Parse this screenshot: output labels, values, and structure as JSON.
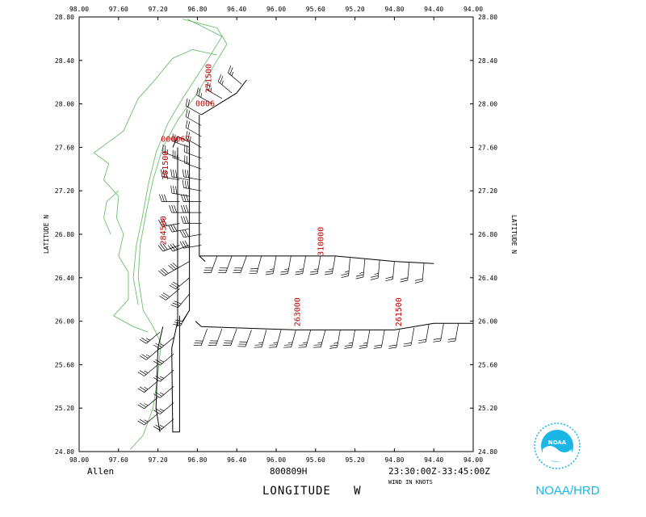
{
  "chart_data": {
    "type": "map",
    "title": "",
    "storm_name": "Allen",
    "date_code": "800809H",
    "time_range": "23:30:00Z-33:45:00Z",
    "wind_units": "WIND IN KNOTS",
    "xlabel": "LONGITUDE   W",
    "ylabel": "LATITUDE   N",
    "xlim": [
      98.0,
      94.0
    ],
    "ylim": [
      24.8,
      28.8
    ],
    "x_ticks": [
      "98.00",
      "97.60",
      "97.20",
      "96.80",
      "96.40",
      "96.00",
      "95.60",
      "95.20",
      "94.80",
      "94.40",
      "94.00"
    ],
    "y_ticks": [
      "28.80",
      "28.40",
      "28.00",
      "27.60",
      "27.20",
      "26.80",
      "26.40",
      "26.00",
      "25.60",
      "25.20",
      "24.80"
    ],
    "time_labels": [
      {
        "text": "271500",
        "lon": 96.66,
        "lat": 28.1
      },
      {
        "text": "0006",
        "lon": 96.82,
        "lat": 27.98
      },
      {
        "text": "000067",
        "lon": 97.17,
        "lat": 27.65
      },
      {
        "text": "301500",
        "lon": 97.1,
        "lat": 27.3
      },
      {
        "text": "284500",
        "lon": 97.12,
        "lat": 26.7
      },
      {
        "text": "310000",
        "lon": 95.52,
        "lat": 26.6
      },
      {
        "text": "263000",
        "lon": 95.76,
        "lat": 25.95
      },
      {
        "text": "261500",
        "lon": 94.73,
        "lat": 25.95
      }
    ],
    "flight_tracks": [
      [
        [
          96.78,
          27.9
        ],
        [
          96.78,
          26.6
        ],
        [
          96.72,
          26.55
        ]
      ],
      [
        [
          96.76,
          27.9
        ],
        [
          96.4,
          28.1
        ],
        [
          96.3,
          28.22
        ]
      ],
      [
        [
          96.78,
          26.6
        ],
        [
          96.2,
          26.6
        ],
        [
          95.4,
          26.6
        ],
        [
          94.8,
          26.55
        ],
        [
          94.4,
          26.53
        ]
      ],
      [
        [
          96.82,
          26.0
        ],
        [
          96.76,
          25.95
        ],
        [
          95.8,
          25.92
        ],
        [
          95.4,
          25.92
        ],
        [
          94.8,
          25.92
        ],
        [
          94.4,
          25.98
        ],
        [
          94.0,
          25.98
        ]
      ],
      [
        [
          97.05,
          27.6
        ],
        [
          97.0,
          27.7
        ],
        [
          96.88,
          27.65
        ],
        [
          96.88,
          26.1
        ],
        [
          96.95,
          26.0
        ]
      ],
      [
        [
          97.0,
          27.6
        ],
        [
          97.0,
          25.95
        ]
      ],
      [
        [
          97.0,
          26.0
        ],
        [
          97.06,
          25.75
        ],
        [
          97.05,
          24.98
        ],
        [
          96.98,
          24.98
        ],
        [
          96.98,
          26.05
        ]
      ],
      [
        [
          97.15,
          25.95
        ],
        [
          97.2,
          25.75
        ],
        [
          97.22,
          25.2
        ],
        [
          97.18,
          24.98
        ]
      ]
    ],
    "coastline": [
      [
        [
          96.95,
          28.78
        ],
        [
          96.6,
          28.7
        ],
        [
          96.5,
          28.55
        ],
        [
          96.6,
          28.4
        ],
        [
          96.8,
          28.1
        ],
        [
          97.0,
          27.85
        ],
        [
          97.15,
          27.6
        ],
        [
          97.25,
          27.3
        ],
        [
          97.32,
          27.0
        ],
        [
          97.38,
          26.7
        ],
        [
          97.4,
          26.4
        ],
        [
          97.35,
          26.1
        ],
        [
          97.25,
          25.95
        ],
        [
          97.17,
          25.8
        ],
        [
          97.2,
          25.5
        ],
        [
          97.25,
          25.2
        ],
        [
          97.35,
          24.95
        ],
        [
          97.48,
          24.82
        ]
      ],
      [
        [
          96.9,
          28.78
        ],
        [
          96.55,
          28.62
        ],
        [
          96.7,
          28.4
        ],
        [
          96.95,
          28.05
        ],
        [
          97.1,
          27.82
        ],
        [
          97.22,
          27.55
        ],
        [
          97.3,
          27.25
        ],
        [
          97.36,
          26.95
        ],
        [
          97.42,
          26.7
        ],
        [
          97.45,
          26.4
        ],
        [
          97.4,
          26.15
        ]
      ],
      [
        [
          96.6,
          28.45
        ],
        [
          96.85,
          28.5
        ],
        [
          97.05,
          28.42
        ],
        [
          97.25,
          28.2
        ],
        [
          97.4,
          28.05
        ],
        [
          97.5,
          27.85
        ],
        [
          97.55,
          27.75
        ],
        [
          97.7,
          27.65
        ],
        [
          97.85,
          27.55
        ],
        [
          97.7,
          27.45
        ],
        [
          97.75,
          27.3
        ],
        [
          97.6,
          27.15
        ],
        [
          97.62,
          26.95
        ],
        [
          97.55,
          26.8
        ],
        [
          97.6,
          26.6
        ],
        [
          97.5,
          26.45
        ],
        [
          97.5,
          26.2
        ],
        [
          97.65,
          26.05
        ],
        [
          97.45,
          25.95
        ],
        [
          97.3,
          25.9
        ]
      ],
      [
        [
          97.6,
          27.2
        ],
        [
          97.72,
          27.1
        ],
        [
          97.75,
          26.95
        ],
        [
          97.68,
          26.8
        ]
      ]
    ],
    "wind_barbs": [
      {
        "lon": 96.76,
        "lat": 27.9,
        "dir": 300,
        "speed": 20
      },
      {
        "lon": 96.76,
        "lat": 27.8,
        "dir": 300,
        "speed": 20
      },
      {
        "lon": 96.76,
        "lat": 27.7,
        "dir": 300,
        "speed": 20
      },
      {
        "lon": 96.76,
        "lat": 27.6,
        "dir": 300,
        "speed": 25
      },
      {
        "lon": 96.76,
        "lat": 27.5,
        "dir": 290,
        "speed": 25
      },
      {
        "lon": 96.76,
        "lat": 27.4,
        "dir": 290,
        "speed": 30
      },
      {
        "lon": 96.76,
        "lat": 27.3,
        "dir": 280,
        "speed": 30
      },
      {
        "lon": 96.76,
        "lat": 27.2,
        "dir": 280,
        "speed": 30
      },
      {
        "lon": 96.76,
        "lat": 27.1,
        "dir": 270,
        "speed": 30
      },
      {
        "lon": 96.76,
        "lat": 27.0,
        "dir": 270,
        "speed": 30
      },
      {
        "lon": 96.76,
        "lat": 26.9,
        "dir": 270,
        "speed": 30
      },
      {
        "lon": 96.76,
        "lat": 26.8,
        "dir": 260,
        "speed": 30
      },
      {
        "lon": 96.76,
        "lat": 26.7,
        "dir": 260,
        "speed": 30
      },
      {
        "lon": 96.65,
        "lat": 28.0,
        "dir": 300,
        "speed": 25
      },
      {
        "lon": 96.55,
        "lat": 28.05,
        "dir": 300,
        "speed": 25
      },
      {
        "lon": 96.45,
        "lat": 28.1,
        "dir": 310,
        "speed": 25
      },
      {
        "lon": 96.35,
        "lat": 28.18,
        "dir": 310,
        "speed": 25
      },
      {
        "lon": 96.6,
        "lat": 26.6,
        "dir": 200,
        "speed": 30
      },
      {
        "lon": 96.45,
        "lat": 26.6,
        "dir": 200,
        "speed": 30
      },
      {
        "lon": 96.3,
        "lat": 26.6,
        "dir": 200,
        "speed": 30
      },
      {
        "lon": 96.15,
        "lat": 26.6,
        "dir": 195,
        "speed": 30
      },
      {
        "lon": 96.0,
        "lat": 26.6,
        "dir": 190,
        "speed": 25
      },
      {
        "lon": 95.85,
        "lat": 26.6,
        "dir": 190,
        "speed": 25
      },
      {
        "lon": 95.7,
        "lat": 26.6,
        "dir": 190,
        "speed": 25
      },
      {
        "lon": 95.55,
        "lat": 26.6,
        "dir": 190,
        "speed": 25
      },
      {
        "lon": 95.4,
        "lat": 26.6,
        "dir": 190,
        "speed": 25
      },
      {
        "lon": 95.25,
        "lat": 26.58,
        "dir": 185,
        "speed": 25
      },
      {
        "lon": 95.1,
        "lat": 26.57,
        "dir": 185,
        "speed": 25
      },
      {
        "lon": 94.95,
        "lat": 26.56,
        "dir": 185,
        "speed": 25
      },
      {
        "lon": 94.8,
        "lat": 26.55,
        "dir": 185,
        "speed": 20
      },
      {
        "lon": 94.65,
        "lat": 26.54,
        "dir": 185,
        "speed": 20
      },
      {
        "lon": 94.5,
        "lat": 26.53,
        "dir": 185,
        "speed": 20
      },
      {
        "lon": 96.7,
        "lat": 25.93,
        "dir": 200,
        "speed": 30
      },
      {
        "lon": 96.55,
        "lat": 25.93,
        "dir": 200,
        "speed": 30
      },
      {
        "lon": 96.4,
        "lat": 25.93,
        "dir": 200,
        "speed": 30
      },
      {
        "lon": 96.25,
        "lat": 25.92,
        "dir": 200,
        "speed": 30
      },
      {
        "lon": 96.1,
        "lat": 25.92,
        "dir": 195,
        "speed": 25
      },
      {
        "lon": 95.95,
        "lat": 25.92,
        "dir": 195,
        "speed": 25
      },
      {
        "lon": 95.8,
        "lat": 25.92,
        "dir": 195,
        "speed": 25
      },
      {
        "lon": 95.65,
        "lat": 25.92,
        "dir": 195,
        "speed": 25
      },
      {
        "lon": 95.5,
        "lat": 25.92,
        "dir": 195,
        "speed": 25
      },
      {
        "lon": 95.35,
        "lat": 25.92,
        "dir": 190,
        "speed": 25
      },
      {
        "lon": 95.2,
        "lat": 25.92,
        "dir": 190,
        "speed": 25
      },
      {
        "lon": 95.05,
        "lat": 25.92,
        "dir": 190,
        "speed": 25
      },
      {
        "lon": 94.9,
        "lat": 25.92,
        "dir": 190,
        "speed": 20
      },
      {
        "lon": 94.75,
        "lat": 25.92,
        "dir": 190,
        "speed": 20
      },
      {
        "lon": 94.6,
        "lat": 25.94,
        "dir": 190,
        "speed": 20
      },
      {
        "lon": 94.45,
        "lat": 25.97,
        "dir": 190,
        "speed": 20
      },
      {
        "lon": 94.3,
        "lat": 25.98,
        "dir": 190,
        "speed": 20
      },
      {
        "lon": 94.15,
        "lat": 25.98,
        "dir": 190,
        "speed": 20
      },
      {
        "lon": 96.88,
        "lat": 27.6,
        "dir": 290,
        "speed": 25
      },
      {
        "lon": 96.88,
        "lat": 27.45,
        "dir": 290,
        "speed": 25
      },
      {
        "lon": 96.88,
        "lat": 27.3,
        "dir": 280,
        "speed": 30
      },
      {
        "lon": 96.88,
        "lat": 27.15,
        "dir": 280,
        "speed": 30
      },
      {
        "lon": 96.88,
        "lat": 27.0,
        "dir": 270,
        "speed": 30
      },
      {
        "lon": 96.88,
        "lat": 26.85,
        "dir": 260,
        "speed": 30
      },
      {
        "lon": 96.88,
        "lat": 26.7,
        "dir": 250,
        "speed": 30
      },
      {
        "lon": 96.88,
        "lat": 26.55,
        "dir": 240,
        "speed": 30
      },
      {
        "lon": 96.88,
        "lat": 26.4,
        "dir": 230,
        "speed": 30
      },
      {
        "lon": 96.88,
        "lat": 26.25,
        "dir": 220,
        "speed": 30
      },
      {
        "lon": 96.88,
        "lat": 26.1,
        "dir": 210,
        "speed": 30
      },
      {
        "lon": 96.98,
        "lat": 27.5,
        "dir": 290,
        "speed": 25
      },
      {
        "lon": 96.98,
        "lat": 27.3,
        "dir": 280,
        "speed": 30
      },
      {
        "lon": 96.98,
        "lat": 27.1,
        "dir": 270,
        "speed": 30
      },
      {
        "lon": 96.98,
        "lat": 26.9,
        "dir": 260,
        "speed": 30
      },
      {
        "lon": 96.98,
        "lat": 26.7,
        "dir": 250,
        "speed": 30
      },
      {
        "lon": 96.98,
        "lat": 26.5,
        "dir": 240,
        "speed": 30
      },
      {
        "lon": 96.98,
        "lat": 26.3,
        "dir": 230,
        "speed": 30
      },
      {
        "lon": 97.04,
        "lat": 25.85,
        "dir": 230,
        "speed": 25
      },
      {
        "lon": 97.04,
        "lat": 25.7,
        "dir": 230,
        "speed": 25
      },
      {
        "lon": 97.04,
        "lat": 25.55,
        "dir": 230,
        "speed": 25
      },
      {
        "lon": 97.04,
        "lat": 25.4,
        "dir": 230,
        "speed": 25
      },
      {
        "lon": 97.04,
        "lat": 25.25,
        "dir": 230,
        "speed": 25
      },
      {
        "lon": 97.04,
        "lat": 25.1,
        "dir": 230,
        "speed": 25
      },
      {
        "lon": 97.18,
        "lat": 25.9,
        "dir": 230,
        "speed": 25
      },
      {
        "lon": 97.18,
        "lat": 25.75,
        "dir": 230,
        "speed": 25
      },
      {
        "lon": 97.2,
        "lat": 25.6,
        "dir": 230,
        "speed": 25
      },
      {
        "lon": 97.2,
        "lat": 25.45,
        "dir": 230,
        "speed": 25
      },
      {
        "lon": 97.2,
        "lat": 25.3,
        "dir": 230,
        "speed": 25
      },
      {
        "lon": 97.2,
        "lat": 25.15,
        "dir": 230,
        "speed": 25
      }
    ]
  },
  "logo": {
    "label": "NOAA/HRD",
    "emblem_text": "NOAA",
    "color": "#19b6e6"
  }
}
